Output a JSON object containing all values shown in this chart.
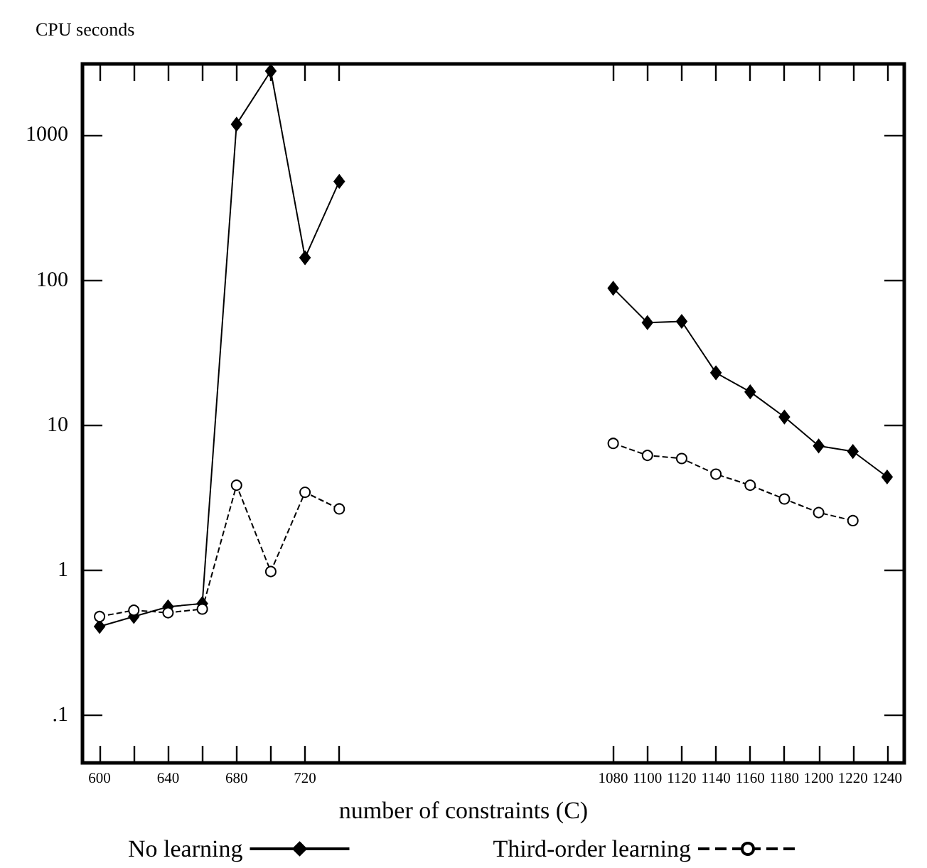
{
  "chart_data": {
    "type": "line",
    "ylabel": "CPU seconds",
    "xlabel": "number of constraints (C)",
    "categories": [
      "600",
      null,
      "640",
      null,
      "680",
      null,
      "720",
      null,
      null,
      null,
      null,
      null,
      null,
      null,
      null,
      "1080",
      "1100",
      "1120",
      "1140",
      "1160",
      "1180",
      "1200",
      "1220",
      "1240"
    ],
    "series": [
      {
        "name": "No learning",
        "color": "#000000",
        "marker": "diamond",
        "line_style": "solid",
        "values": [
          0.41,
          0.48,
          0.56,
          0.59,
          1190,
          2770,
          143,
          480,
          null,
          null,
          null,
          null,
          null,
          null,
          null,
          88,
          51,
          52,
          23,
          17,
          11.4,
          7.2,
          6.6,
          4.4
        ]
      },
      {
        "name": "Third-order learning",
        "color": "#000000",
        "marker": "circle",
        "line_style": "dashed",
        "values": [
          0.48,
          0.53,
          0.51,
          0.54,
          3.86,
          0.98,
          3.45,
          2.65,
          null,
          null,
          null,
          null,
          null,
          null,
          null,
          7.5,
          6.2,
          5.9,
          4.6,
          3.86,
          3.1,
          2.5,
          2.2,
          null
        ]
      }
    ],
    "log": "y",
    "ylim": [
      0.047,
      3100
    ],
    "yticks": [
      {
        "value": 0.1,
        "label": ".1"
      },
      1,
      10,
      100,
      1000
    ],
    "grid": false,
    "legend": "bottom"
  }
}
